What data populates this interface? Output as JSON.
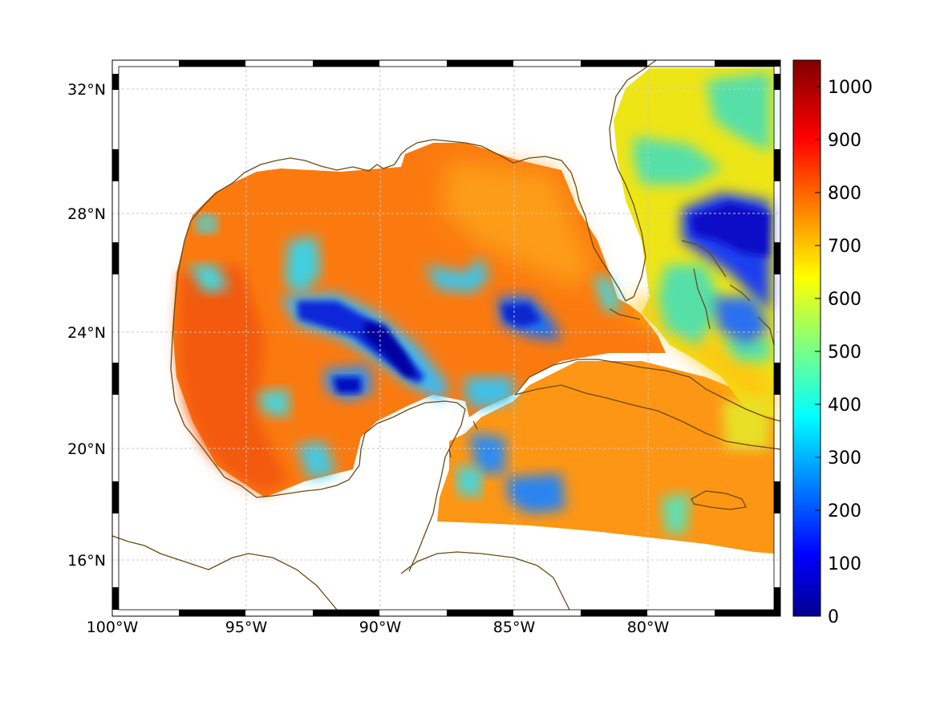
{
  "map": {
    "lon_range": [
      -100,
      -75
    ],
    "lat_range": [
      14.2,
      33
    ],
    "lon_ticks": [
      {
        "value": -100,
        "label": "100°W"
      },
      {
        "value": -95,
        "label": "95°W"
      },
      {
        "value": -90,
        "label": "90°W"
      },
      {
        "value": -85,
        "label": "85°W"
      },
      {
        "value": -80,
        "label": "80°W"
      }
    ],
    "lat_ticks": [
      {
        "value": 32,
        "label": "32°N"
      },
      {
        "value": 28,
        "label": "28°N"
      },
      {
        "value": 24,
        "label": "24°N"
      },
      {
        "value": 20,
        "label": "20°N"
      },
      {
        "value": 16,
        "label": "16°N"
      }
    ],
    "grid": true,
    "coastline_color": "#6b4a12",
    "land_color": "#ffffff"
  },
  "colorbar": {
    "colormap": "jet",
    "range": [
      0,
      1050
    ],
    "ticks": [
      "0",
      "100",
      "200",
      "300",
      "400",
      "500",
      "600",
      "700",
      "800",
      "900",
      "1000"
    ],
    "placement": "right"
  }
}
